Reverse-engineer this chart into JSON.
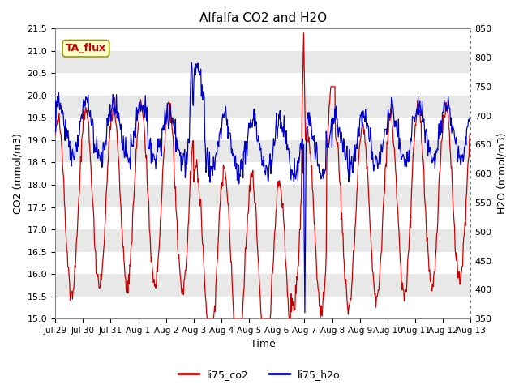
{
  "title": "Alfalfa CO2 and H2O",
  "xlabel": "Time",
  "ylabel_left": "CO2 (mmol/m3)",
  "ylabel_right": "H2O (mmol/m3)",
  "co2_label": "li75_co2",
  "h2o_label": "li75_h2o",
  "co2_color": "#cc0000",
  "h2o_color": "#0000cc",
  "co2_ylim": [
    15.0,
    21.5
  ],
  "h2o_ylim": [
    350,
    850
  ],
  "yticks_left": [
    15.0,
    15.5,
    16.0,
    16.5,
    17.0,
    17.5,
    18.0,
    18.5,
    19.0,
    19.5,
    20.0,
    20.5,
    21.0,
    21.5
  ],
  "yticks_right": [
    350,
    400,
    450,
    500,
    550,
    600,
    650,
    700,
    750,
    800,
    850
  ],
  "xtick_labels": [
    "Jul 29",
    "Jul 30",
    "Jul 31",
    "Aug 1",
    "Aug 2",
    "Aug 3",
    "Aug 4",
    "Aug 5",
    "Aug 6",
    "Aug 7",
    "Aug 8",
    "Aug 9",
    "Aug 10",
    "Aug 11",
    "Aug 12",
    "Aug 13"
  ],
  "annotation_text": "TA_flux",
  "annotation_color": "#cc0000",
  "annotation_bg": "#ffffcc",
  "annotation_border": "#999900",
  "plot_bg_light": "#e8e8e8",
  "plot_bg_dark": "#d0d0d0",
  "title_fontsize": 11,
  "axis_label_fontsize": 9,
  "tick_fontsize": 8
}
